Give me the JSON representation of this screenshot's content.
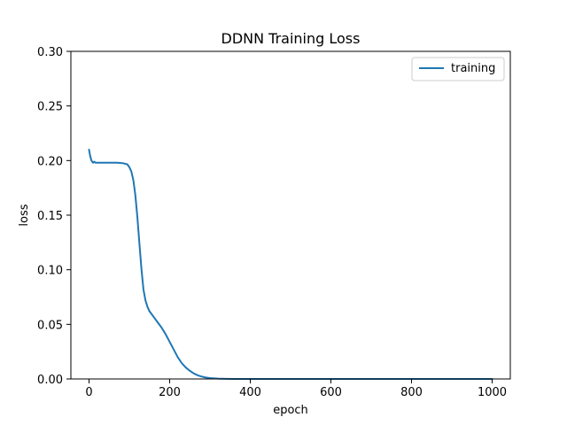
{
  "chart_data": {
    "type": "line",
    "title": "DDNN Training Loss",
    "xlabel": "epoch",
    "ylabel": "loss",
    "xlim": [
      -45,
      1045
    ],
    "ylim": [
      0,
      0.3
    ],
    "xticks": [
      0,
      200,
      400,
      600,
      800,
      1000
    ],
    "xtick_labels": [
      "0",
      "200",
      "400",
      "600",
      "800",
      "1000"
    ],
    "yticks": [
      0.0,
      0.05,
      0.1,
      0.15,
      0.2,
      0.25,
      0.3
    ],
    "ytick_labels": [
      "0.00",
      "0.05",
      "0.10",
      "0.15",
      "0.20",
      "0.25",
      "0.30"
    ],
    "grid": false,
    "legend_position": "top-right",
    "series": [
      {
        "name": "training",
        "color": "#1f77b4",
        "x": [
          0,
          3,
          6,
          10,
          13,
          16,
          20,
          30,
          50,
          70,
          85,
          95,
          100,
          105,
          110,
          115,
          120,
          125,
          130,
          135,
          140,
          145,
          150,
          160,
          170,
          180,
          190,
          200,
          210,
          220,
          230,
          240,
          250,
          260,
          270,
          280,
          290,
          300,
          320,
          340,
          360,
          380,
          400,
          450,
          500,
          600,
          700,
          800,
          900,
          1000
        ],
        "y": [
          0.21,
          0.204,
          0.2,
          0.198,
          0.199,
          0.198,
          0.198,
          0.198,
          0.198,
          0.198,
          0.1975,
          0.1965,
          0.194,
          0.19,
          0.182,
          0.168,
          0.148,
          0.124,
          0.101,
          0.082,
          0.072,
          0.066,
          0.062,
          0.057,
          0.052,
          0.047,
          0.041,
          0.034,
          0.027,
          0.02,
          0.0145,
          0.0105,
          0.0075,
          0.005,
          0.0033,
          0.0021,
          0.0013,
          0.0008,
          0.0003,
          0.0001,
          5e-05,
          2e-05,
          1e-05,
          0.0,
          0.0,
          0.0,
          0.0,
          0.0,
          0.0,
          0.0
        ]
      }
    ]
  }
}
